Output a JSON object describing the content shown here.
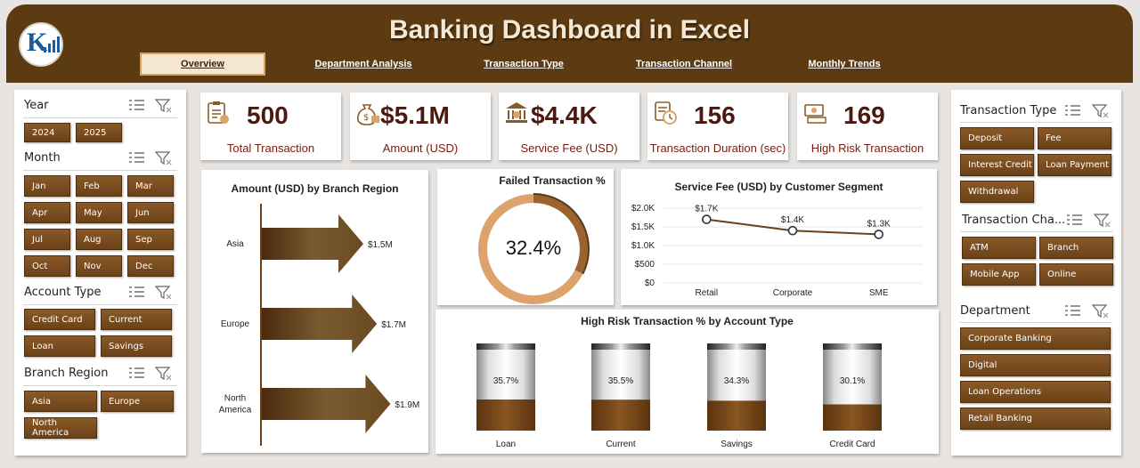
{
  "app": {
    "title": "Banking Dashboard in Excel"
  },
  "tabs": [
    {
      "label": "Overview",
      "active": true
    },
    {
      "label": "Department Analysis"
    },
    {
      "label": "Transaction Type"
    },
    {
      "label": "Transaction Channel"
    },
    {
      "label": "Monthly Trends"
    }
  ],
  "left_slicers": {
    "year": {
      "title": "Year",
      "items": [
        "2024",
        "2025"
      ]
    },
    "month": {
      "title": "Month",
      "items": [
        "Jan",
        "Feb",
        "Mar",
        "Apr",
        "May",
        "Jun",
        "Jul",
        "Aug",
        "Sep",
        "Oct",
        "Nov",
        "Dec"
      ]
    },
    "account_type": {
      "title": "Account Type",
      "items": [
        "Credit Card",
        "Current",
        "Loan",
        "Savings"
      ]
    },
    "branch_region": {
      "title": "Branch Region",
      "items": [
        "Asia",
        "Europe",
        "North America"
      ]
    }
  },
  "right_slicers": {
    "transaction_type": {
      "title": "Transaction Type",
      "items": [
        "Deposit",
        "Fee",
        "Interest Credit",
        "Loan Payment",
        "Withdrawal"
      ]
    },
    "transaction_channel": {
      "title": "Transaction Cha...",
      "items": [
        "ATM",
        "Branch",
        "Mobile App",
        "Online"
      ]
    },
    "department": {
      "title": "Department",
      "items": [
        "Corporate Banking",
        "Digital",
        "Loan Operations",
        "Retail Banking"
      ]
    }
  },
  "kpis": [
    {
      "value": "500",
      "label": "Total Transaction",
      "icon": "clipboard-icon"
    },
    {
      "value": "$5.1M",
      "label": "Amount (USD)",
      "icon": "money-bag-icon"
    },
    {
      "value": "$4.4K",
      "label": "Service Fee (USD)",
      "icon": "bank-icon"
    },
    {
      "value": "156",
      "label": "Transaction Duration (sec)",
      "icon": "clock-icon"
    },
    {
      "value": "169",
      "label": "High Risk Transaction",
      "icon": "cash-icon"
    }
  ],
  "colors": {
    "brown_dark": "#5c3a12",
    "brown_chip": "#7a4c20",
    "tan": "#d9a46a",
    "ring_fill": "#9a642e",
    "kpi_value": "#4a1a10"
  },
  "chart_data": [
    {
      "type": "bar",
      "title": "Amount (USD) by Branch Region",
      "categories": [
        "Asia",
        "Europe",
        "North America"
      ],
      "values": [
        1.5,
        1.7,
        1.9
      ],
      "data_labels": [
        "$1.5M",
        "$1.7M",
        "$1.9M"
      ],
      "orientation": "horizontal",
      "xlim": [
        0,
        2.0
      ]
    },
    {
      "type": "pie",
      "title": "Failed Transaction %",
      "value": 32.4,
      "label": "32.4%"
    },
    {
      "type": "line",
      "title": "Service Fee (USD) by Customer Segment",
      "categories": [
        "Retail",
        "Corporate",
        "SME"
      ],
      "values": [
        1700,
        1400,
        1300
      ],
      "data_labels": [
        "$1.7K",
        "$1.4K",
        "$1.3K"
      ],
      "yticks": [
        "$0",
        "$500",
        "$1.0K",
        "$1.5K",
        "$2.0K"
      ],
      "ylim": [
        0,
        2000
      ]
    },
    {
      "type": "bar",
      "title": "High Risk Transaction % by Account Type",
      "categories": [
        "Loan",
        "Current",
        "Savings",
        "Credit Card"
      ],
      "values": [
        35.7,
        35.5,
        34.3,
        30.1
      ],
      "data_labels": [
        "35.7%",
        "35.5%",
        "34.3%",
        "30.1%"
      ],
      "ylim": [
        0,
        100
      ]
    }
  ]
}
